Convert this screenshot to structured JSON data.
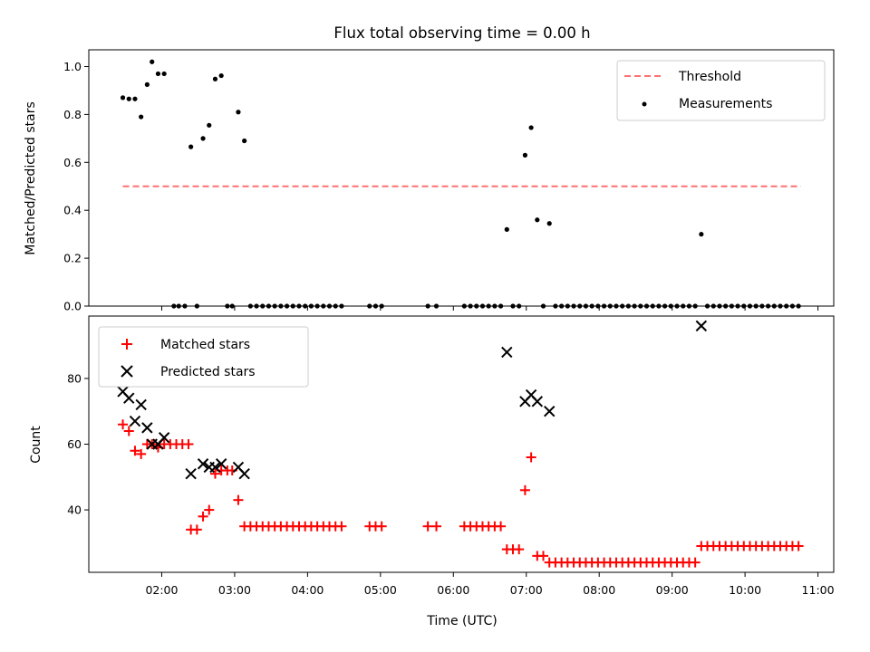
{
  "chart_data": {
    "type": "scatter",
    "title": "Flux total observing time = 0.00 h",
    "xlabel": "Time (UTC)",
    "x_ticks": [
      "02:00",
      "03:00",
      "04:00",
      "05:00",
      "06:00",
      "07:00",
      "08:00",
      "09:00",
      "10:00",
      "11:00"
    ],
    "xlim": [
      "01:00",
      "11:13"
    ],
    "panels": [
      {
        "ylabel": "Matched/Predicted stars",
        "ylim": [
          0,
          1.07
        ],
        "y_ticks": [
          "0.0",
          "0.2",
          "0.4",
          "0.6",
          "0.8",
          "1.0"
        ],
        "legend_position": "upper right",
        "threshold": {
          "name": "Threshold",
          "value": 0.5,
          "x_start": "01:28",
          "x_end": "10:46",
          "color": "#ff7070",
          "style": "dashed"
        },
        "measurements": {
          "name": "Measurements",
          "color": "#000000",
          "points": [
            [
              "01:28",
              0.87
            ],
            [
              "01:33",
              0.865
            ],
            [
              "01:38",
              0.865
            ],
            [
              "01:43",
              0.79
            ],
            [
              "01:48",
              0.925
            ],
            [
              "01:52",
              1.02
            ],
            [
              "01:57",
              0.97
            ],
            [
              "02:02",
              0.97
            ],
            [
              "02:10",
              0.0
            ],
            [
              "02:14",
              0.0
            ],
            [
              "02:19",
              0.0
            ],
            [
              "02:24",
              0.665
            ],
            [
              "02:29",
              0.0
            ],
            [
              "02:34",
              0.7
            ],
            [
              "02:39",
              0.755
            ],
            [
              "02:44",
              0.948
            ],
            [
              "02:49",
              0.962
            ],
            [
              "02:54",
              0.0
            ],
            [
              "02:58",
              0.0
            ],
            [
              "03:03",
              0.81
            ],
            [
              "03:08",
              0.69
            ],
            [
              "03:13",
              0.0
            ],
            [
              "03:18",
              0.0
            ],
            [
              "03:23",
              0.0
            ],
            [
              "03:28",
              0.0
            ],
            [
              "03:33",
              0.0
            ],
            [
              "03:38",
              0.0
            ],
            [
              "03:43",
              0.0
            ],
            [
              "03:48",
              0.0
            ],
            [
              "03:53",
              0.0
            ],
            [
              "03:58",
              0.0
            ],
            [
              "04:03",
              0.0
            ],
            [
              "04:08",
              0.0
            ],
            [
              "04:13",
              0.0
            ],
            [
              "04:18",
              0.0
            ],
            [
              "04:23",
              0.0
            ],
            [
              "04:28",
              0.0
            ],
            [
              "04:51",
              0.0
            ],
            [
              "04:56",
              0.0
            ],
            [
              "05:01",
              0.0
            ],
            [
              "05:39",
              0.0
            ],
            [
              "05:46",
              0.0
            ],
            [
              "06:09",
              0.0
            ],
            [
              "06:14",
              0.0
            ],
            [
              "06:19",
              0.0
            ],
            [
              "06:24",
              0.0
            ],
            [
              "06:29",
              0.0
            ],
            [
              "06:34",
              0.0
            ],
            [
              "06:39",
              0.0
            ],
            [
              "06:44",
              0.32
            ],
            [
              "06:49",
              0.0
            ],
            [
              "06:54",
              0.0
            ],
            [
              "06:59",
              0.63
            ],
            [
              "07:04",
              0.745
            ],
            [
              "07:09",
              0.36
            ],
            [
              "07:14",
              0.0
            ],
            [
              "07:19",
              0.345
            ],
            [
              "07:24",
              0.0
            ],
            [
              "07:29",
              0.0
            ],
            [
              "07:34",
              0.0
            ],
            [
              "07:39",
              0.0
            ],
            [
              "07:44",
              0.0
            ],
            [
              "07:49",
              0.0
            ],
            [
              "07:54",
              0.0
            ],
            [
              "07:59",
              0.0
            ],
            [
              "08:04",
              0.0
            ],
            [
              "08:09",
              0.0
            ],
            [
              "08:14",
              0.0
            ],
            [
              "08:19",
              0.0
            ],
            [
              "08:24",
              0.0
            ],
            [
              "08:29",
              0.0
            ],
            [
              "08:34",
              0.0
            ],
            [
              "08:39",
              0.0
            ],
            [
              "08:44",
              0.0
            ],
            [
              "08:49",
              0.0
            ],
            [
              "08:54",
              0.0
            ],
            [
              "08:59",
              0.0
            ],
            [
              "09:04",
              0.0
            ],
            [
              "09:09",
              0.0
            ],
            [
              "09:14",
              0.0
            ],
            [
              "09:19",
              0.0
            ],
            [
              "09:24",
              0.3
            ],
            [
              "09:29",
              0.0
            ],
            [
              "09:34",
              0.0
            ],
            [
              "09:39",
              0.0
            ],
            [
              "09:44",
              0.0
            ],
            [
              "09:49",
              0.0
            ],
            [
              "09:54",
              0.0
            ],
            [
              "09:59",
              0.0
            ],
            [
              "10:04",
              0.0
            ],
            [
              "10:09",
              0.0
            ],
            [
              "10:14",
              0.0
            ],
            [
              "10:19",
              0.0
            ],
            [
              "10:24",
              0.0
            ],
            [
              "10:29",
              0.0
            ],
            [
              "10:34",
              0.0
            ],
            [
              "10:39",
              0.0
            ],
            [
              "10:44",
              0.0
            ]
          ]
        }
      },
      {
        "ylabel": "Count",
        "ylim": [
          21,
          99
        ],
        "y_ticks": [
          "40",
          "60",
          "80"
        ],
        "legend_position": "upper left",
        "series": [
          {
            "name": "Matched stars",
            "marker": "plus",
            "color": "#ff0000",
            "points": [
              [
                "01:28",
                66
              ],
              [
                "01:33",
                64
              ],
              [
                "01:38",
                58
              ],
              [
                "01:43",
                57
              ],
              [
                "01:48",
                60
              ],
              [
                "01:52",
                60
              ],
              [
                "01:57",
                59
              ],
              [
                "02:02",
                60
              ],
              [
                "02:07",
                60
              ],
              [
                "02:12",
                60
              ],
              [
                "02:17",
                60
              ],
              [
                "02:22",
                60
              ],
              [
                "02:24",
                34
              ],
              [
                "02:29",
                34
              ],
              [
                "02:34",
                38
              ],
              [
                "02:39",
                40
              ],
              [
                "02:44",
                51
              ],
              [
                "02:49",
                52
              ],
              [
                "02:54",
                52
              ],
              [
                "02:58",
                52
              ],
              [
                "03:03",
                43
              ],
              [
                "03:08",
                35
              ],
              [
                "03:13",
                35
              ],
              [
                "03:18",
                35
              ],
              [
                "03:23",
                35
              ],
              [
                "03:28",
                35
              ],
              [
                "03:33",
                35
              ],
              [
                "03:38",
                35
              ],
              [
                "03:43",
                35
              ],
              [
                "03:48",
                35
              ],
              [
                "03:53",
                35
              ],
              [
                "03:58",
                35
              ],
              [
                "04:03",
                35
              ],
              [
                "04:08",
                35
              ],
              [
                "04:13",
                35
              ],
              [
                "04:18",
                35
              ],
              [
                "04:23",
                35
              ],
              [
                "04:28",
                35
              ],
              [
                "04:51",
                35
              ],
              [
                "04:56",
                35
              ],
              [
                "05:01",
                35
              ],
              [
                "05:39",
                35
              ],
              [
                "05:46",
                35
              ],
              [
                "06:09",
                35
              ],
              [
                "06:14",
                35
              ],
              [
                "06:19",
                35
              ],
              [
                "06:24",
                35
              ],
              [
                "06:29",
                35
              ],
              [
                "06:34",
                35
              ],
              [
                "06:39",
                35
              ],
              [
                "06:44",
                28
              ],
              [
                "06:49",
                28
              ],
              [
                "06:54",
                28
              ],
              [
                "06:59",
                46
              ],
              [
                "07:04",
                56
              ],
              [
                "07:09",
                26
              ],
              [
                "07:14",
                26
              ],
              [
                "07:19",
                24
              ],
              [
                "07:24",
                24
              ],
              [
                "07:29",
                24
              ],
              [
                "07:34",
                24
              ],
              [
                "07:39",
                24
              ],
              [
                "07:44",
                24
              ],
              [
                "07:49",
                24
              ],
              [
                "07:54",
                24
              ],
              [
                "07:59",
                24
              ],
              [
                "08:04",
                24
              ],
              [
                "08:09",
                24
              ],
              [
                "08:14",
                24
              ],
              [
                "08:19",
                24
              ],
              [
                "08:24",
                24
              ],
              [
                "08:29",
                24
              ],
              [
                "08:34",
                24
              ],
              [
                "08:39",
                24
              ],
              [
                "08:44",
                24
              ],
              [
                "08:49",
                24
              ],
              [
                "08:54",
                24
              ],
              [
                "08:59",
                24
              ],
              [
                "09:04",
                24
              ],
              [
                "09:09",
                24
              ],
              [
                "09:14",
                24
              ],
              [
                "09:19",
                24
              ],
              [
                "09:24",
                29
              ],
              [
                "09:29",
                29
              ],
              [
                "09:34",
                29
              ],
              [
                "09:39",
                29
              ],
              [
                "09:44",
                29
              ],
              [
                "09:49",
                29
              ],
              [
                "09:54",
                29
              ],
              [
                "09:59",
                29
              ],
              [
                "10:04",
                29
              ],
              [
                "10:09",
                29
              ],
              [
                "10:14",
                29
              ],
              [
                "10:19",
                29
              ],
              [
                "10:24",
                29
              ],
              [
                "10:29",
                29
              ],
              [
                "10:34",
                29
              ],
              [
                "10:39",
                29
              ],
              [
                "10:44",
                29
              ]
            ]
          },
          {
            "name": "Predicted stars",
            "marker": "x",
            "color": "#000000",
            "points": [
              [
                "01:28",
                76
              ],
              [
                "01:33",
                74
              ],
              [
                "01:38",
                67
              ],
              [
                "01:43",
                72
              ],
              [
                "01:48",
                65
              ],
              [
                "01:52",
                60
              ],
              [
                "01:57",
                60
              ],
              [
                "02:02",
                62
              ],
              [
                "02:24",
                51
              ],
              [
                "02:34",
                54
              ],
              [
                "02:39",
                53
              ],
              [
                "02:44",
                53
              ],
              [
                "02:49",
                54
              ],
              [
                "03:03",
                53
              ],
              [
                "03:08",
                51
              ],
              [
                "06:44",
                88
              ],
              [
                "06:59",
                73
              ],
              [
                "07:04",
                75
              ],
              [
                "07:09",
                73
              ],
              [
                "07:19",
                70
              ],
              [
                "09:24",
                96
              ]
            ]
          }
        ]
      }
    ]
  }
}
